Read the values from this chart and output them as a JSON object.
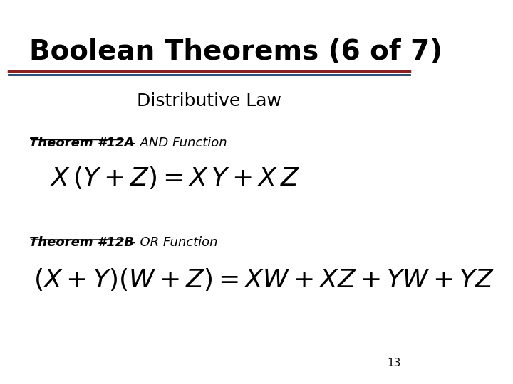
{
  "title": "Boolean Theorems (6 of 7)",
  "subtitle": "Distributive Law",
  "theorem_12a_label": "Theorem #12A",
  "theorem_12a_suffix": " – AND Function",
  "theorem_12a_formula": "$X\\,(Y + Z) = X\\,Y + X\\,Z$",
  "theorem_12b_label": "Theorem #12B",
  "theorem_12b_suffix": " – OR Function",
  "theorem_12b_formula": "$(X + Y)(W + Z) = XW + XZ + YW + YZ$",
  "page_number": "13",
  "bg_color": "#ffffff",
  "title_color": "#000000",
  "subtitle_color": "#000000",
  "theorem_label_color": "#000000",
  "formula_color": "#000000",
  "line_color_top": "#8b2020",
  "line_color_bottom": "#1a3a6b",
  "title_fontsize": 28,
  "subtitle_fontsize": 18,
  "theorem_label_fontsize": 13,
  "formula_fontsize": 26,
  "page_num_fontsize": 11
}
